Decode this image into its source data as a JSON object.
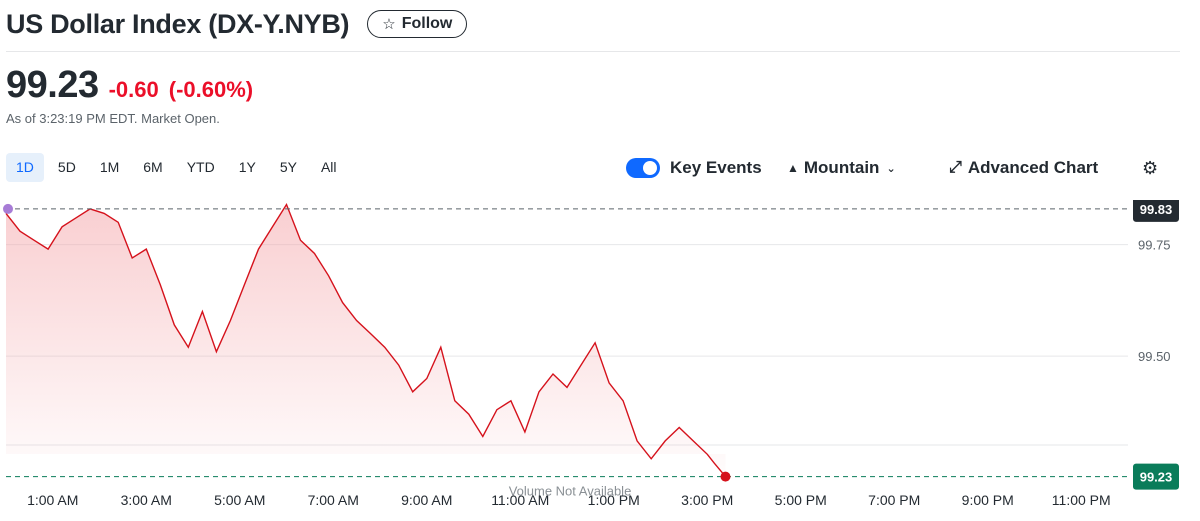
{
  "header": {
    "title": "US Dollar Index (DX-Y.NYB)",
    "follow_label": "Follow",
    "star_icon": "star-outline-icon"
  },
  "quote": {
    "price": "99.23",
    "change": "-0.60",
    "change_percent": "(-0.60%)",
    "as_of": "As of 3:23:19 PM EDT. Market Open.",
    "down_color": "#eb0f29"
  },
  "ranges": [
    {
      "label": "1D",
      "active": true
    },
    {
      "label": "5D",
      "active": false
    },
    {
      "label": "1M",
      "active": false
    },
    {
      "label": "6M",
      "active": false
    },
    {
      "label": "YTD",
      "active": false
    },
    {
      "label": "1Y",
      "active": false
    },
    {
      "label": "5Y",
      "active": false
    },
    {
      "label": "All",
      "active": false
    }
  ],
  "toolbar": {
    "key_events_label": "Key Events",
    "key_events_on": true,
    "chart_type_label": "Mountain",
    "advanced_label": "Advanced Chart",
    "settings_icon": "gear-icon"
  },
  "chart_data": {
    "type": "area",
    "x_ticks": [
      "1:00 AM",
      "3:00 AM",
      "5:00 AM",
      "7:00 AM",
      "9:00 AM",
      "11:00 AM",
      "1:00 PM",
      "3:00 PM",
      "5:00 PM",
      "7:00 PM",
      "9:00 PM",
      "11:00 PM"
    ],
    "x_tick_hours": [
      1,
      3,
      5,
      7,
      9,
      11,
      13,
      15,
      17,
      19,
      21,
      23
    ],
    "xlim_hours": [
      0,
      24
    ],
    "y_ticks": [
      99.75,
      99.5
    ],
    "ylim": [
      99.2,
      99.85
    ],
    "previous_close": 99.83,
    "previous_close_label": "99.83",
    "current_label": "99.23",
    "volume_note": "Volume Not Available",
    "series": [
      {
        "x_hours": [
          0.0,
          0.3,
          0.6,
          0.9,
          1.2,
          1.5,
          1.8,
          2.1,
          2.4,
          2.7,
          3.0,
          3.3,
          3.6,
          3.9,
          4.2,
          4.5,
          4.8,
          5.1,
          5.4,
          5.7,
          6.0,
          6.3,
          6.6,
          6.9,
          7.2,
          7.5,
          7.8,
          8.1,
          8.4,
          8.7,
          9.0,
          9.3,
          9.6,
          9.9,
          10.2,
          10.5,
          10.8,
          11.1,
          11.4,
          11.7,
          12.0,
          12.3,
          12.6,
          12.9,
          13.2,
          13.5,
          13.8,
          14.1,
          14.4,
          14.7,
          15.0,
          15.15,
          15.39
        ],
        "values": [
          99.82,
          99.78,
          99.76,
          99.74,
          99.79,
          99.81,
          99.83,
          99.82,
          99.8,
          99.72,
          99.74,
          99.66,
          99.57,
          99.52,
          99.6,
          99.51,
          99.58,
          99.66,
          99.74,
          99.79,
          99.84,
          99.76,
          99.73,
          99.68,
          99.62,
          99.58,
          99.55,
          99.52,
          99.48,
          99.42,
          99.45,
          99.52,
          99.4,
          99.37,
          99.32,
          99.38,
          99.4,
          99.33,
          99.42,
          99.46,
          99.43,
          99.48,
          99.53,
          99.44,
          99.4,
          99.31,
          99.27,
          99.31,
          99.34,
          99.31,
          99.28,
          99.26,
          99.23
        ],
        "color": "#e0202a"
      }
    ],
    "grid": "horizontal",
    "line_color": "#d5121c",
    "fill_color": "#f4a7ab",
    "prev_close_badge_color": "#232a31",
    "current_badge_color": "#0a7c5a",
    "start_marker_color": "#a77cd6",
    "end_marker_color": "#d5121c"
  }
}
